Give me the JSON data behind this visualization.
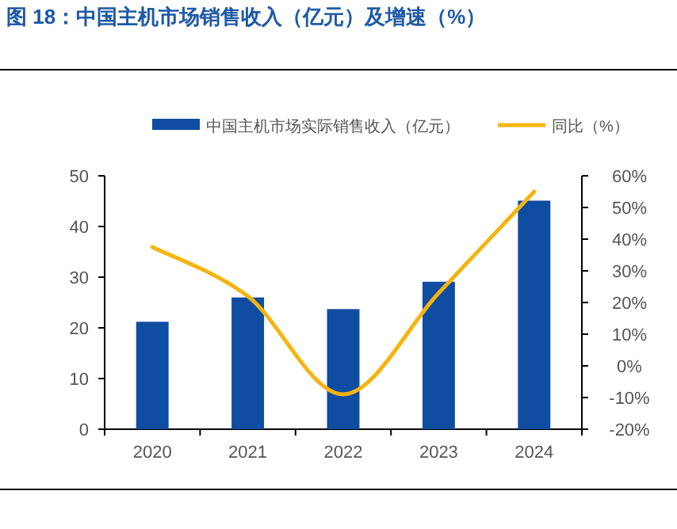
{
  "chart_data": {
    "type": "bar",
    "title": "图 18：中国主机市场销售收入（亿元）及增速（%）",
    "categories": [
      "2020",
      "2021",
      "2022",
      "2023",
      "2024"
    ],
    "series": [
      {
        "name": "中国主机市场实际销售收入（亿元）",
        "color": "#0e4da1",
        "values": [
          21.2,
          26.0,
          23.7,
          29.1,
          45.1
        ]
      },
      {
        "name": "同比（%）",
        "type": "line",
        "axis": "y2",
        "color": "#f5b40f",
        "values": [
          37.5,
          22,
          -9,
          23,
          55
        ]
      }
    ],
    "ylim": [
      0,
      50
    ],
    "yticks": [
      0,
      10,
      20,
      30,
      40,
      50
    ],
    "y2lim": [
      -20,
      60
    ],
    "y2ticks": [
      {
        "value": -20,
        "label": "-20%"
      },
      {
        "value": -10,
        "label": "-10%"
      },
      {
        "value": 0,
        "label": "0%"
      },
      {
        "value": 10,
        "label": "10%"
      },
      {
        "value": 20,
        "label": "20%"
      },
      {
        "value": 30,
        "label": "30%"
      },
      {
        "value": 40,
        "label": "40%"
      },
      {
        "value": 50,
        "label": "50%"
      },
      {
        "value": 60,
        "label": "60%"
      }
    ],
    "legend": "top",
    "grid": false
  }
}
